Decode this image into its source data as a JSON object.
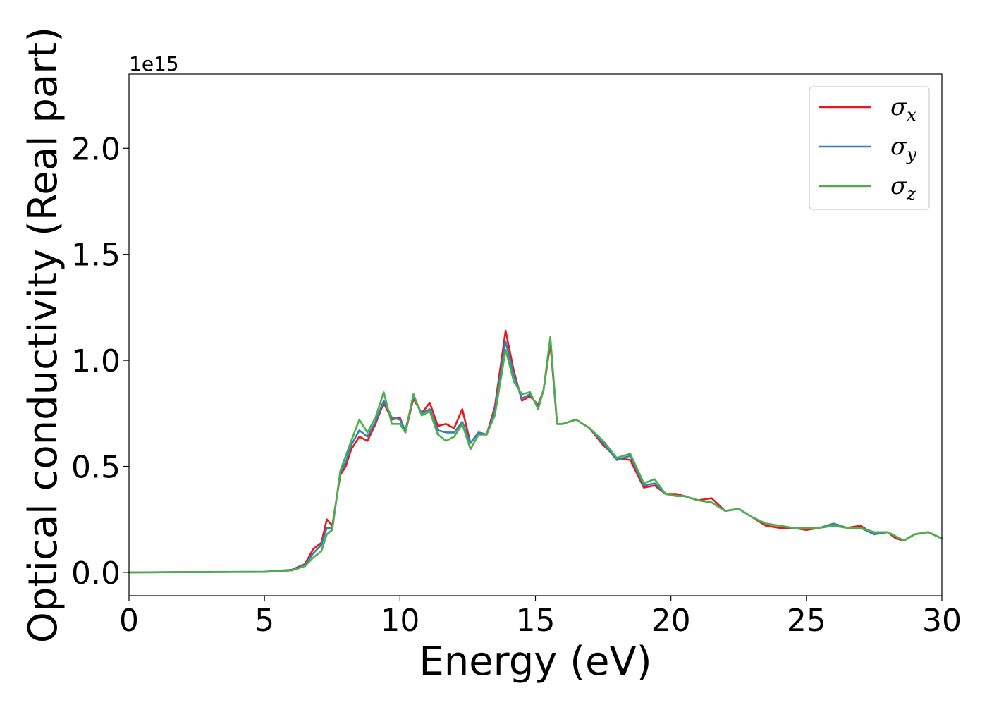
{
  "chart_data": {
    "type": "line",
    "xlabel": "Energy (eV)",
    "ylabel": "Optical conductivity (Real part)",
    "y_offset_label": "1e15",
    "xlim": [
      0,
      30
    ],
    "ylim": [
      -0.11,
      2.35
    ],
    "xticks": [
      0,
      5,
      10,
      15,
      20,
      25,
      30
    ],
    "xtick_labels": [
      "0",
      "5",
      "10",
      "15",
      "20",
      "25",
      "30"
    ],
    "yticks": [
      0.0,
      0.5,
      1.0,
      1.5,
      2.0
    ],
    "ytick_labels": [
      "0.0",
      "0.5",
      "1.0",
      "1.5",
      "2.0"
    ],
    "grid": false,
    "legend_position": "top-right",
    "series": [
      {
        "name": "σx",
        "symbol": "σ",
        "subscript": "x",
        "color": "#e41a1c",
        "x": [
          0,
          5,
          6,
          6.5,
          6.8,
          7.1,
          7.3,
          7.5,
          7.8,
          8.0,
          8.2,
          8.5,
          8.8,
          9.1,
          9.4,
          9.7,
          10.0,
          10.2,
          10.5,
          10.8,
          11.1,
          11.4,
          11.7,
          12.0,
          12.3,
          12.6,
          12.9,
          13.2,
          13.5,
          13.9,
          14.2,
          14.5,
          14.8,
          15.1,
          15.3,
          15.55,
          15.8,
          16.0,
          16.5,
          17.0,
          17.5,
          18.0,
          18.5,
          19.0,
          19.4,
          19.8,
          20.2,
          20.5,
          21.0,
          21.5,
          22.0,
          22.5,
          23.0,
          23.5,
          24.0,
          24.5,
          25.0,
          25.5,
          26.0,
          26.5,
          27.0,
          27.5,
          28.0,
          28.3,
          28.6,
          29.0,
          29.5,
          30.0
        ],
        "y": [
          0,
          0.003,
          0.012,
          0.04,
          0.11,
          0.14,
          0.25,
          0.22,
          0.46,
          0.5,
          0.58,
          0.64,
          0.62,
          0.7,
          0.8,
          0.72,
          0.73,
          0.66,
          0.82,
          0.75,
          0.8,
          0.69,
          0.7,
          0.68,
          0.77,
          0.61,
          0.66,
          0.65,
          0.78,
          1.14,
          0.95,
          0.81,
          0.83,
          0.79,
          0.86,
          1.08,
          0.7,
          0.7,
          0.72,
          0.68,
          0.6,
          0.54,
          0.53,
          0.4,
          0.41,
          0.37,
          0.37,
          0.36,
          0.34,
          0.35,
          0.29,
          0.3,
          0.26,
          0.22,
          0.21,
          0.21,
          0.2,
          0.21,
          0.23,
          0.21,
          0.22,
          0.18,
          0.19,
          0.16,
          0.15,
          0.18,
          0.19,
          0.16
        ]
      },
      {
        "name": "σy",
        "symbol": "σ",
        "subscript": "y",
        "color": "#377eb8",
        "x": [
          0,
          5,
          6,
          6.5,
          6.8,
          7.1,
          7.3,
          7.5,
          7.8,
          8.0,
          8.2,
          8.5,
          8.8,
          9.1,
          9.4,
          9.7,
          10.0,
          10.2,
          10.5,
          10.8,
          11.1,
          11.4,
          11.7,
          12.0,
          12.3,
          12.6,
          12.9,
          13.2,
          13.5,
          13.9,
          14.2,
          14.5,
          14.8,
          15.1,
          15.3,
          15.55,
          15.8,
          16.0,
          16.5,
          17.0,
          17.5,
          18.0,
          18.5,
          19.0,
          19.4,
          19.8,
          20.2,
          20.5,
          21.0,
          21.5,
          22.0,
          22.5,
          23.0,
          23.5,
          24.0,
          24.5,
          25.0,
          25.5,
          26.0,
          26.5,
          27.0,
          27.5,
          28.0,
          28.3,
          28.6,
          29.0,
          29.5,
          30.0
        ],
        "y": [
          0,
          0.003,
          0.011,
          0.035,
          0.09,
          0.13,
          0.21,
          0.21,
          0.47,
          0.52,
          0.6,
          0.67,
          0.64,
          0.71,
          0.81,
          0.73,
          0.72,
          0.67,
          0.83,
          0.75,
          0.77,
          0.67,
          0.66,
          0.66,
          0.71,
          0.61,
          0.66,
          0.65,
          0.76,
          1.09,
          0.93,
          0.82,
          0.84,
          0.78,
          0.86,
          1.1,
          0.7,
          0.7,
          0.72,
          0.68,
          0.61,
          0.53,
          0.55,
          0.41,
          0.42,
          0.37,
          0.36,
          0.36,
          0.34,
          0.33,
          0.29,
          0.3,
          0.26,
          0.23,
          0.22,
          0.21,
          0.21,
          0.21,
          0.23,
          0.21,
          0.21,
          0.18,
          0.19,
          0.17,
          0.15,
          0.18,
          0.19,
          0.16
        ]
      },
      {
        "name": "σz",
        "symbol": "σ",
        "subscript": "z",
        "color": "#4daf4a",
        "x": [
          0,
          5,
          6,
          6.5,
          6.8,
          7.1,
          7.3,
          7.5,
          7.8,
          8.0,
          8.2,
          8.5,
          8.8,
          9.1,
          9.4,
          9.7,
          10.0,
          10.2,
          10.5,
          10.8,
          11.1,
          11.4,
          11.7,
          12.0,
          12.3,
          12.6,
          12.9,
          13.2,
          13.5,
          13.9,
          14.2,
          14.5,
          14.8,
          15.1,
          15.3,
          15.55,
          15.8,
          16.0,
          16.5,
          17.0,
          17.5,
          18.0,
          18.5,
          19.0,
          19.4,
          19.8,
          20.2,
          20.5,
          21.0,
          21.5,
          22.0,
          22.5,
          23.0,
          23.5,
          24.0,
          24.5,
          25.0,
          25.5,
          26.0,
          26.5,
          27.0,
          27.5,
          28.0,
          28.3,
          28.6,
          29.0,
          29.5,
          30.0
        ],
        "y": [
          0,
          0.002,
          0.009,
          0.03,
          0.07,
          0.1,
          0.18,
          0.2,
          0.48,
          0.55,
          0.62,
          0.72,
          0.66,
          0.73,
          0.85,
          0.7,
          0.7,
          0.66,
          0.84,
          0.74,
          0.76,
          0.65,
          0.62,
          0.64,
          0.7,
          0.58,
          0.65,
          0.65,
          0.74,
          1.05,
          0.9,
          0.84,
          0.85,
          0.77,
          0.86,
          1.11,
          0.7,
          0.7,
          0.72,
          0.68,
          0.62,
          0.54,
          0.56,
          0.42,
          0.44,
          0.37,
          0.36,
          0.36,
          0.34,
          0.33,
          0.29,
          0.3,
          0.26,
          0.23,
          0.22,
          0.21,
          0.21,
          0.21,
          0.22,
          0.21,
          0.21,
          0.19,
          0.19,
          0.17,
          0.15,
          0.18,
          0.19,
          0.16
        ]
      }
    ]
  }
}
